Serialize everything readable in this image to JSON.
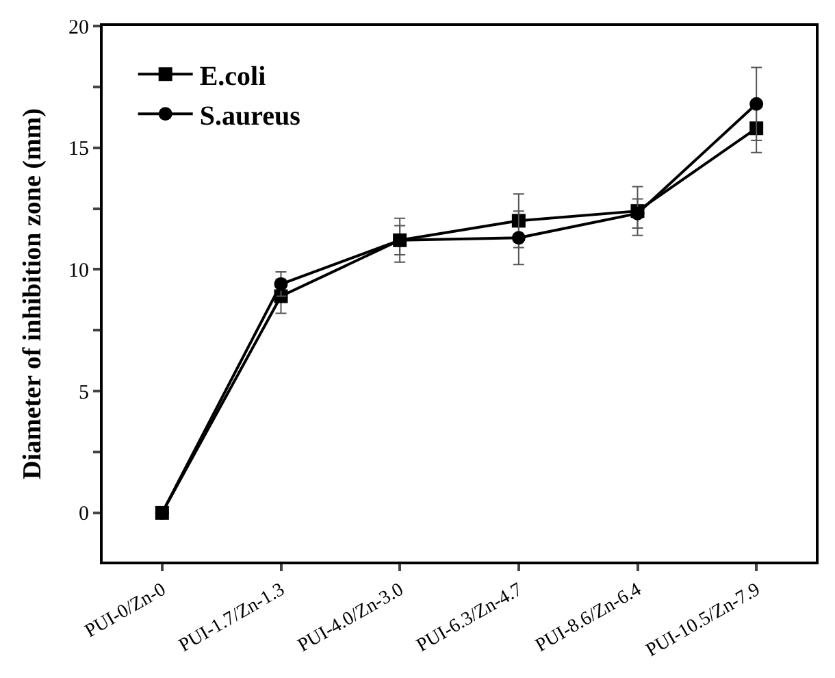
{
  "chart_data": {
    "type": "line",
    "ylabel": "Diameter of inhibition zone (mm)",
    "categories": [
      "PUI-0/Zn-0",
      "PUI-1.7/Zn-1.3",
      "PUI-4.0/Zn-3.0",
      "PUI-6.3/Zn-4.7",
      "PUI-8.6/Zn-6.4",
      "PUI-10.5/Zn-7.9"
    ],
    "series": [
      {
        "name": "E.coli",
        "color": "#000000",
        "marker": "square",
        "values": [
          0,
          8.9,
          11.2,
          12.0,
          12.4,
          15.8
        ],
        "errors": [
          null,
          0.7,
          0.9,
          1.1,
          1.0,
          1.0
        ]
      },
      {
        "name": "S.aureus",
        "color": "#000000",
        "marker": "circle",
        "values": [
          0,
          9.4,
          11.2,
          11.3,
          12.3,
          16.8
        ],
        "errors": [
          null,
          0.5,
          0.6,
          1.1,
          0.6,
          1.5
        ]
      }
    ],
    "ylim": [
      -2,
      20
    ],
    "yticks": [
      0,
      {
        "value": 2.5,
        "label": null
      },
      5,
      {
        "value": 7.5,
        "label": null
      },
      10,
      {
        "value": 12.5,
        "label": null
      },
      15,
      {
        "value": 17.5,
        "label": null
      },
      20
    ],
    "legend": "top left",
    "line_style": "solid"
  }
}
